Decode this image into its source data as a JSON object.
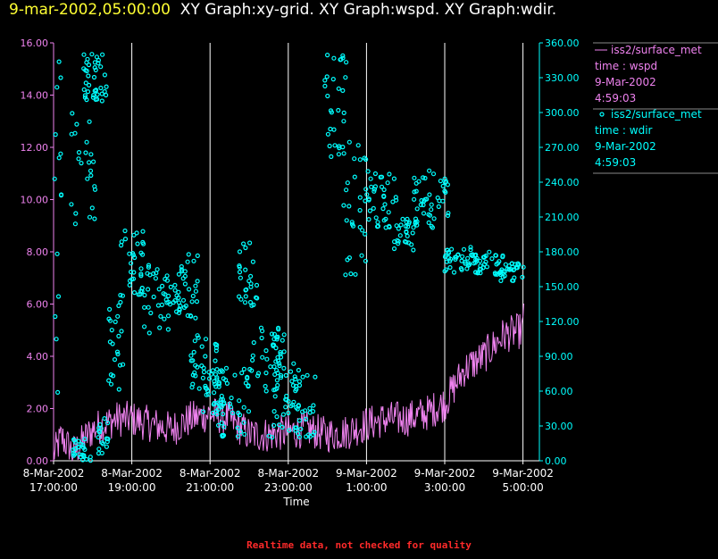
{
  "header": {
    "timestamp": "9-mar-2002,05:00:00",
    "graphs": "XY Graph:xy-grid.  XY Graph:wspd.  XY Graph:wdir."
  },
  "footer": {
    "quality_note": "Realtime data, not checked for quality"
  },
  "colors": {
    "wspd": "#ee82ee",
    "wdir": "#00ffff",
    "grid": "#ffffff",
    "title_ts": "#ffff33",
    "note": "#ff2a2a"
  },
  "chart_data": {
    "type": "line",
    "xlabel": "Time",
    "x_range_hours": [
      -12.0,
      0.42
    ],
    "x_ticks": [
      {
        "h": -12,
        "date": "8-Mar-2002",
        "time": "17:00:00"
      },
      {
        "h": -10,
        "date": "8-Mar-2002",
        "time": "19:00:00"
      },
      {
        "h": -8,
        "date": "8-Mar-2002",
        "time": "21:00:00"
      },
      {
        "h": -6,
        "date": "8-Mar-2002",
        "time": "23:00:00"
      },
      {
        "h": -4,
        "date": "9-Mar-2002",
        "time": "1:00:00"
      },
      {
        "h": -2,
        "date": "9-Mar-2002",
        "time": "3:00:00"
      },
      {
        "h": 0,
        "date": "9-Mar-2002",
        "time": "5:00:00"
      }
    ],
    "left_axis": {
      "ylim": [
        0,
        16
      ],
      "ticks": [
        "0.00",
        "2.00",
        "4.00",
        "6.00",
        "8.00",
        "10.00",
        "12.00",
        "14.00",
        "16.00"
      ]
    },
    "right_axis": {
      "ylim": [
        0,
        360
      ],
      "ticks": [
        "0.00",
        "30.00",
        "60.00",
        "90.00",
        "120.00",
        "150.00",
        "180.00",
        "210.00",
        "240.00",
        "270.00",
        "300.00",
        "330.00",
        "360.00"
      ]
    },
    "series": [
      {
        "name": "iss2/surface_met",
        "variable": "time : wspd",
        "date": "9-Mar-2002",
        "time": "4:59:03",
        "axis": "left",
        "style": "line",
        "anchors": [
          [
            -12,
            0.2
          ],
          [
            -11.8,
            0.9
          ],
          [
            -11.5,
            0.3
          ],
          [
            -11,
            1.2
          ],
          [
            -10.4,
            1.6
          ],
          [
            -10,
            1.6
          ],
          [
            -9.5,
            1.4
          ],
          [
            -9,
            1.2
          ],
          [
            -8.5,
            1.6
          ],
          [
            -8,
            1.8
          ],
          [
            -7.5,
            1.6
          ],
          [
            -7,
            1.0
          ],
          [
            -6.5,
            1.0
          ],
          [
            -6,
            1.1
          ],
          [
            -5.5,
            1.2
          ],
          [
            -5,
            1.0
          ],
          [
            -4.5,
            1.1
          ],
          [
            -4,
            1.4
          ],
          [
            -3.5,
            1.6
          ],
          [
            -3,
            1.6
          ],
          [
            -2.5,
            1.8
          ],
          [
            -2,
            2.2
          ],
          [
            -1.5,
            3.5
          ],
          [
            -1,
            4.0
          ],
          [
            -0.5,
            4.8
          ],
          [
            0,
            5.0
          ],
          [
            0.02,
            5.8
          ]
        ],
        "noise": 0.7
      },
      {
        "name": "iss2/surface_met",
        "variable": "time : wdir",
        "date": "9-Mar-2002",
        "time": "4:59:03",
        "axis": "right",
        "style": "scatter",
        "clusters": [
          {
            "h": [
              -12.0,
              -11.8
            ],
            "d": [
              0,
              360
            ]
          },
          {
            "h": [
              -11.6,
              -10.9
            ],
            "d": [
              200,
              355
            ]
          },
          {
            "h": [
              -11.5,
              -11.0
            ],
            "d": [
              0,
              20
            ]
          },
          {
            "h": [
              -11.2,
              -10.6
            ],
            "d": [
              310,
              355
            ]
          },
          {
            "h": [
              -10.9,
              -10.6
            ],
            "d": [
              5,
              40
            ]
          },
          {
            "h": [
              -10.6,
              -10.2
            ],
            "d": [
              60,
              140
            ]
          },
          {
            "h": [
              -10.3,
              -9.7
            ],
            "d": [
              140,
              200
            ]
          },
          {
            "h": [
              -9.8,
              -8.7
            ],
            "d": [
              110,
              170
            ]
          },
          {
            "h": [
              -8.9,
              -8.3
            ],
            "d": [
              120,
              180
            ]
          },
          {
            "h": [
              -8.5,
              -7.8
            ],
            "d": [
              60,
              110
            ]
          },
          {
            "h": [
              -8.2,
              -7.6
            ],
            "d": [
              40,
              80
            ]
          },
          {
            "h": [
              -7.8,
              -7.0
            ],
            "d": [
              20,
              80
            ]
          },
          {
            "h": [
              -7.3,
              -6.8
            ],
            "d": [
              130,
              190
            ]
          },
          {
            "h": [
              -7.0,
              -6.1
            ],
            "d": [
              60,
              120
            ]
          },
          {
            "h": [
              -6.5,
              -5.7
            ],
            "d": [
              20,
              100
            ]
          },
          {
            "h": [
              -5.9,
              -5.3
            ],
            "d": [
              20,
              80
            ]
          },
          {
            "h": [
              -5.1,
              -4.5
            ],
            "d": [
              260,
              350
            ]
          },
          {
            "h": [
              -4.6,
              -4.0
            ],
            "d": [
              160,
              280
            ]
          },
          {
            "h": [
              -4.0,
              -3.2
            ],
            "d": [
              200,
              250
            ]
          },
          {
            "h": [
              -3.3,
              -2.7
            ],
            "d": [
              180,
              210
            ]
          },
          {
            "h": [
              -2.8,
              -1.9
            ],
            "d": [
              200,
              250
            ]
          },
          {
            "h": [
              -2.0,
              -1.2
            ],
            "d": [
              160,
              185
            ]
          },
          {
            "h": [
              -1.3,
              -0.5
            ],
            "d": [
              160,
              180
            ]
          },
          {
            "h": [
              -0.6,
              0.02
            ],
            "d": [
              155,
              170
            ]
          }
        ]
      }
    ]
  }
}
